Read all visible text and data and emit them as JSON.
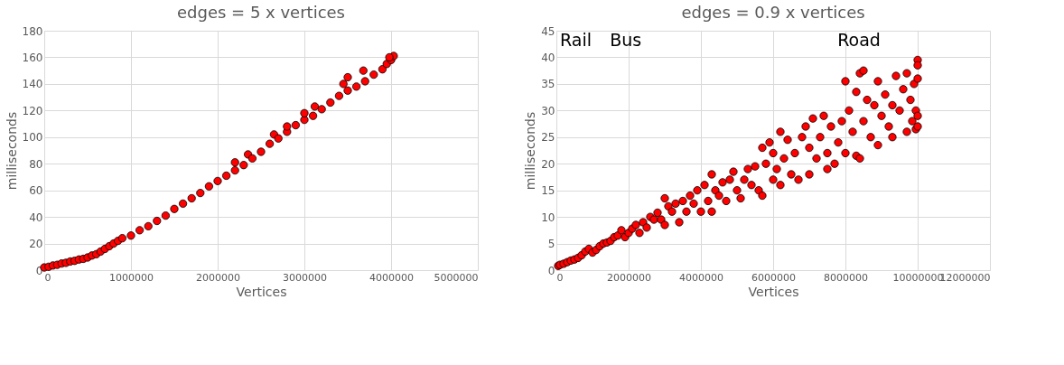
{
  "chart_data": [
    {
      "type": "scatter",
      "title": "edges = 5 x vertices",
      "xlabel": "Vertices",
      "ylabel": "milliseconds",
      "marker": "circle",
      "grid": true,
      "xlim": [
        0,
        5000000
      ],
      "xticks": [
        0,
        1000000,
        2000000,
        3000000,
        4000000,
        5000000
      ],
      "ylim": [
        0,
        180
      ],
      "yticks": [
        0,
        20,
        40,
        60,
        80,
        100,
        120,
        140,
        160,
        180
      ],
      "series": [
        {
          "color": "#ff0000",
          "x": [
            0,
            50000,
            100000,
            150000,
            200000,
            250000,
            300000,
            350000,
            400000,
            450000,
            500000,
            550000,
            600000,
            650000,
            700000,
            750000,
            800000,
            850000,
            900000,
            1000000,
            1100000,
            1200000,
            1300000,
            1400000,
            1500000,
            1600000,
            1700000,
            1800000,
            1900000,
            2000000,
            2100000,
            2200000,
            2200000,
            2300000,
            2350000,
            2400000,
            2500000,
            2600000,
            2650000,
            2700000,
            2800000,
            2800000,
            2900000,
            3000000,
            3000000,
            3100000,
            3120000,
            3200000,
            3300000,
            3400000,
            3450000,
            3500000,
            3500000,
            3600000,
            3700000,
            3680000,
            3800000,
            3900000,
            3950000,
            4000000,
            4030000,
            3980000
          ],
          "values": [
            2,
            2.5,
            3.5,
            4,
            5,
            5.5,
            6.5,
            7,
            8,
            8.5,
            9.5,
            11,
            12,
            14,
            16,
            18,
            20,
            22,
            24,
            26,
            30,
            33,
            37,
            41,
            46,
            50,
            54,
            58,
            63,
            67,
            71,
            75,
            81,
            79,
            87,
            84,
            89,
            95,
            102,
            99,
            104,
            108,
            109,
            113,
            118,
            116,
            123,
            121,
            126,
            131,
            140,
            145,
            135,
            138,
            142,
            150,
            147,
            151,
            155,
            158,
            161,
            160
          ]
        }
      ]
    },
    {
      "type": "scatter",
      "title": "edges = 0.9 x vertices",
      "xlabel": "Vertices",
      "ylabel": "milliseconds",
      "marker": "circle",
      "grid": true,
      "xlim": [
        0,
        12000000
      ],
      "xticks": [
        0,
        2000000,
        4000000,
        6000000,
        8000000,
        10000000,
        12000000
      ],
      "ylim": [
        0,
        45
      ],
      "yticks": [
        0,
        5,
        10,
        15,
        20,
        25,
        30,
        35,
        40,
        45
      ],
      "annotations": [
        "Rail",
        "Bus",
        "Road"
      ],
      "series": [
        {
          "color": "#ff0000",
          "x": [
            50000,
            100000,
            200000,
            300000,
            400000,
            500000,
            600000,
            700000,
            800000,
            900000,
            1000000,
            1100000,
            1200000,
            1300000,
            1400000,
            1500000,
            1600000,
            1700000,
            1800000,
            1900000,
            2000000,
            2100000,
            2200000,
            2300000,
            2400000,
            2500000,
            2600000,
            2700000,
            2800000,
            2900000,
            3000000,
            3000000,
            3100000,
            3200000,
            3300000,
            3400000,
            3500000,
            3600000,
            3700000,
            3800000,
            3900000,
            4000000,
            4100000,
            4200000,
            4300000,
            4300000,
            4400000,
            4500000,
            4600000,
            4700000,
            4800000,
            4900000,
            5000000,
            5100000,
            5200000,
            5300000,
            5400000,
            5500000,
            5600000,
            5700000,
            5700000,
            5800000,
            5900000,
            6000000,
            6000000,
            6100000,
            6200000,
            6200000,
            6300000,
            6400000,
            6500000,
            6600000,
            6700000,
            6800000,
            6900000,
            7000000,
            7000000,
            7100000,
            7200000,
            7300000,
            7400000,
            7500000,
            7500000,
            7600000,
            7700000,
            7800000,
            7900000,
            8000000,
            8000000,
            8100000,
            8200000,
            8300000,
            8300000,
            8400000,
            8400000,
            8500000,
            8500000,
            8600000,
            8700000,
            8800000,
            8900000,
            8900000,
            9000000,
            9100000,
            9200000,
            9300000,
            9300000,
            9400000,
            9500000,
            9600000,
            9700000,
            9700000,
            9800000,
            9850000,
            9900000,
            9950000,
            9950000,
            10000000,
            10000000,
            10000000,
            10000000,
            10000000
          ],
          "values": [
            0.8,
            1,
            1.2,
            1.5,
            1.8,
            2,
            2.3,
            2.8,
            3.5,
            4,
            3.3,
            3.8,
            4.5,
            5,
            5.2,
            5.5,
            6.2,
            6.5,
            7.5,
            6.2,
            7,
            7.8,
            8.5,
            7,
            9,
            8,
            10,
            9.5,
            10.8,
            9.5,
            13.5,
            8.5,
            12,
            11,
            12.5,
            9,
            13,
            11,
            14,
            12.5,
            15,
            11,
            16,
            13,
            18,
            11,
            15,
            14,
            16.5,
            13,
            17,
            18.5,
            15,
            13.5,
            17,
            19,
            16,
            19.5,
            15,
            14,
            23,
            20,
            24,
            17,
            22,
            19,
            16,
            26,
            21,
            24.5,
            18,
            22,
            17,
            25,
            27,
            18,
            23,
            28.5,
            21,
            25,
            29,
            19,
            22,
            27,
            20,
            24,
            28,
            22,
            35.5,
            30,
            26,
            33.5,
            21.5,
            37,
            21,
            28,
            37.5,
            32,
            25,
            31,
            35.5,
            23.5,
            29,
            33,
            27,
            31,
            25,
            36.5,
            30,
            34,
            26,
            37,
            32,
            28,
            35,
            30,
            26.5,
            39.5,
            38.5,
            36,
            29,
            27
          ]
        }
      ]
    }
  ]
}
